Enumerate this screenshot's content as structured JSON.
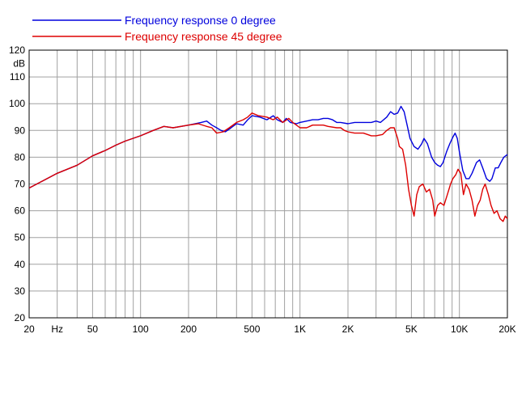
{
  "chart_data": {
    "type": "line",
    "x_scale": "log",
    "xlim": [
      20,
      20000
    ],
    "ylim": [
      20,
      120
    ],
    "ylabel": "dB",
    "xlabel": "",
    "grid": true,
    "legend_position": "top-left",
    "x_tick_labels": [
      {
        "value": 20,
        "label": "20"
      },
      {
        "value": 30,
        "label": "Hz"
      },
      {
        "value": 50,
        "label": "50"
      },
      {
        "value": 100,
        "label": "100"
      },
      {
        "value": 200,
        "label": "200"
      },
      {
        "value": 500,
        "label": "500"
      },
      {
        "value": 1000,
        "label": "1K"
      },
      {
        "value": 2000,
        "label": "2K"
      },
      {
        "value": 5000,
        "label": "5K"
      },
      {
        "value": 10000,
        "label": "10K"
      },
      {
        "value": 20000,
        "label": "20K"
      }
    ],
    "y_ticks": [
      20,
      30,
      40,
      50,
      60,
      70,
      80,
      90,
      100,
      110,
      120
    ],
    "series": [
      {
        "name": "Frequency response 0 degree",
        "color": "#0000dd",
        "points": [
          [
            20,
            68.5
          ],
          [
            25,
            71.5
          ],
          [
            30,
            74
          ],
          [
            40,
            77
          ],
          [
            50,
            80.5
          ],
          [
            60,
            82.5
          ],
          [
            70,
            84.5
          ],
          [
            80,
            86
          ],
          [
            100,
            88
          ],
          [
            120,
            90
          ],
          [
            140,
            91.5
          ],
          [
            160,
            91
          ],
          [
            200,
            92
          ],
          [
            240,
            93
          ],
          [
            260,
            93.5
          ],
          [
            280,
            92
          ],
          [
            300,
            91
          ],
          [
            320,
            90
          ],
          [
            340,
            89.5
          ],
          [
            370,
            91
          ],
          [
            400,
            92.5
          ],
          [
            440,
            92
          ],
          [
            470,
            94
          ],
          [
            500,
            95.5
          ],
          [
            560,
            95
          ],
          [
            620,
            94
          ],
          [
            680,
            95.5
          ],
          [
            720,
            94
          ],
          [
            780,
            93
          ],
          [
            820,
            94.5
          ],
          [
            870,
            93
          ],
          [
            950,
            92.5
          ],
          [
            1000,
            93
          ],
          [
            1100,
            93.5
          ],
          [
            1200,
            94
          ],
          [
            1300,
            94
          ],
          [
            1400,
            94.5
          ],
          [
            1500,
            94.5
          ],
          [
            1600,
            94
          ],
          [
            1700,
            93
          ],
          [
            1800,
            93
          ],
          [
            2000,
            92.5
          ],
          [
            2200,
            93
          ],
          [
            2500,
            93
          ],
          [
            2800,
            93
          ],
          [
            3000,
            93.5
          ],
          [
            3200,
            93
          ],
          [
            3500,
            95
          ],
          [
            3700,
            97
          ],
          [
            3900,
            96
          ],
          [
            4100,
            96.5
          ],
          [
            4300,
            99
          ],
          [
            4500,
            97
          ],
          [
            4700,
            92
          ],
          [
            4900,
            87
          ],
          [
            5200,
            84
          ],
          [
            5500,
            83
          ],
          [
            5800,
            85
          ],
          [
            6000,
            87
          ],
          [
            6300,
            85
          ],
          [
            6700,
            80
          ],
          [
            7000,
            78
          ],
          [
            7300,
            77
          ],
          [
            7600,
            76.5
          ],
          [
            7900,
            78
          ],
          [
            8300,
            82
          ],
          [
            8700,
            85
          ],
          [
            9100,
            87.5
          ],
          [
            9400,
            89
          ],
          [
            9700,
            87
          ],
          [
            10000,
            82
          ],
          [
            10500,
            75
          ],
          [
            11000,
            72
          ],
          [
            11500,
            72
          ],
          [
            12000,
            74
          ],
          [
            12800,
            78
          ],
          [
            13400,
            79
          ],
          [
            14000,
            76
          ],
          [
            14800,
            72
          ],
          [
            15500,
            71
          ],
          [
            16000,
            72
          ],
          [
            16800,
            76
          ],
          [
            17500,
            76
          ],
          [
            18200,
            78
          ],
          [
            19000,
            80
          ],
          [
            20000,
            81
          ]
        ]
      },
      {
        "name": "Frequency response 45 degree",
        "color": "#dd0000",
        "points": [
          [
            20,
            68.5
          ],
          [
            25,
            71.5
          ],
          [
            30,
            74
          ],
          [
            40,
            77
          ],
          [
            50,
            80.5
          ],
          [
            60,
            82.5
          ],
          [
            70,
            84.5
          ],
          [
            80,
            86
          ],
          [
            100,
            88
          ],
          [
            120,
            90
          ],
          [
            140,
            91.5
          ],
          [
            160,
            91
          ],
          [
            200,
            92
          ],
          [
            230,
            92.5
          ],
          [
            260,
            91.5
          ],
          [
            280,
            91
          ],
          [
            300,
            89
          ],
          [
            330,
            89.5
          ],
          [
            360,
            91
          ],
          [
            400,
            93
          ],
          [
            440,
            94
          ],
          [
            470,
            95
          ],
          [
            500,
            96.5
          ],
          [
            550,
            95.5
          ],
          [
            620,
            95
          ],
          [
            680,
            94
          ],
          [
            720,
            95
          ],
          [
            780,
            93
          ],
          [
            850,
            94.5
          ],
          [
            900,
            93
          ],
          [
            950,
            92
          ],
          [
            1000,
            91
          ],
          [
            1100,
            91
          ],
          [
            1200,
            92
          ],
          [
            1400,
            92
          ],
          [
            1500,
            91.5
          ],
          [
            1700,
            91
          ],
          [
            1800,
            91
          ],
          [
            1900,
            90
          ],
          [
            2000,
            89.5
          ],
          [
            2200,
            89
          ],
          [
            2500,
            89
          ],
          [
            2800,
            88
          ],
          [
            3000,
            88
          ],
          [
            3300,
            88.5
          ],
          [
            3500,
            90
          ],
          [
            3700,
            91
          ],
          [
            3900,
            91
          ],
          [
            4100,
            87
          ],
          [
            4200,
            84
          ],
          [
            4400,
            83
          ],
          [
            4600,
            77
          ],
          [
            4800,
            68
          ],
          [
            5000,
            62
          ],
          [
            5200,
            58
          ],
          [
            5400,
            66
          ],
          [
            5600,
            69
          ],
          [
            5900,
            70
          ],
          [
            6200,
            67
          ],
          [
            6500,
            68
          ],
          [
            6800,
            64
          ],
          [
            7000,
            58
          ],
          [
            7300,
            62
          ],
          [
            7600,
            63
          ],
          [
            8000,
            62
          ],
          [
            8400,
            66
          ],
          [
            8800,
            70
          ],
          [
            9100,
            72
          ],
          [
            9500,
            73.5
          ],
          [
            9800,
            75.5
          ],
          [
            10200,
            74
          ],
          [
            10600,
            66
          ],
          [
            11000,
            70
          ],
          [
            11500,
            68
          ],
          [
            12000,
            64
          ],
          [
            12500,
            58
          ],
          [
            13000,
            62
          ],
          [
            13500,
            64
          ],
          [
            14000,
            68
          ],
          [
            14500,
            70
          ],
          [
            15200,
            66
          ],
          [
            15800,
            62
          ],
          [
            16500,
            59
          ],
          [
            17200,
            60
          ],
          [
            18000,
            57
          ],
          [
            18800,
            56
          ],
          [
            19400,
            58
          ],
          [
            20000,
            57
          ]
        ]
      }
    ]
  }
}
